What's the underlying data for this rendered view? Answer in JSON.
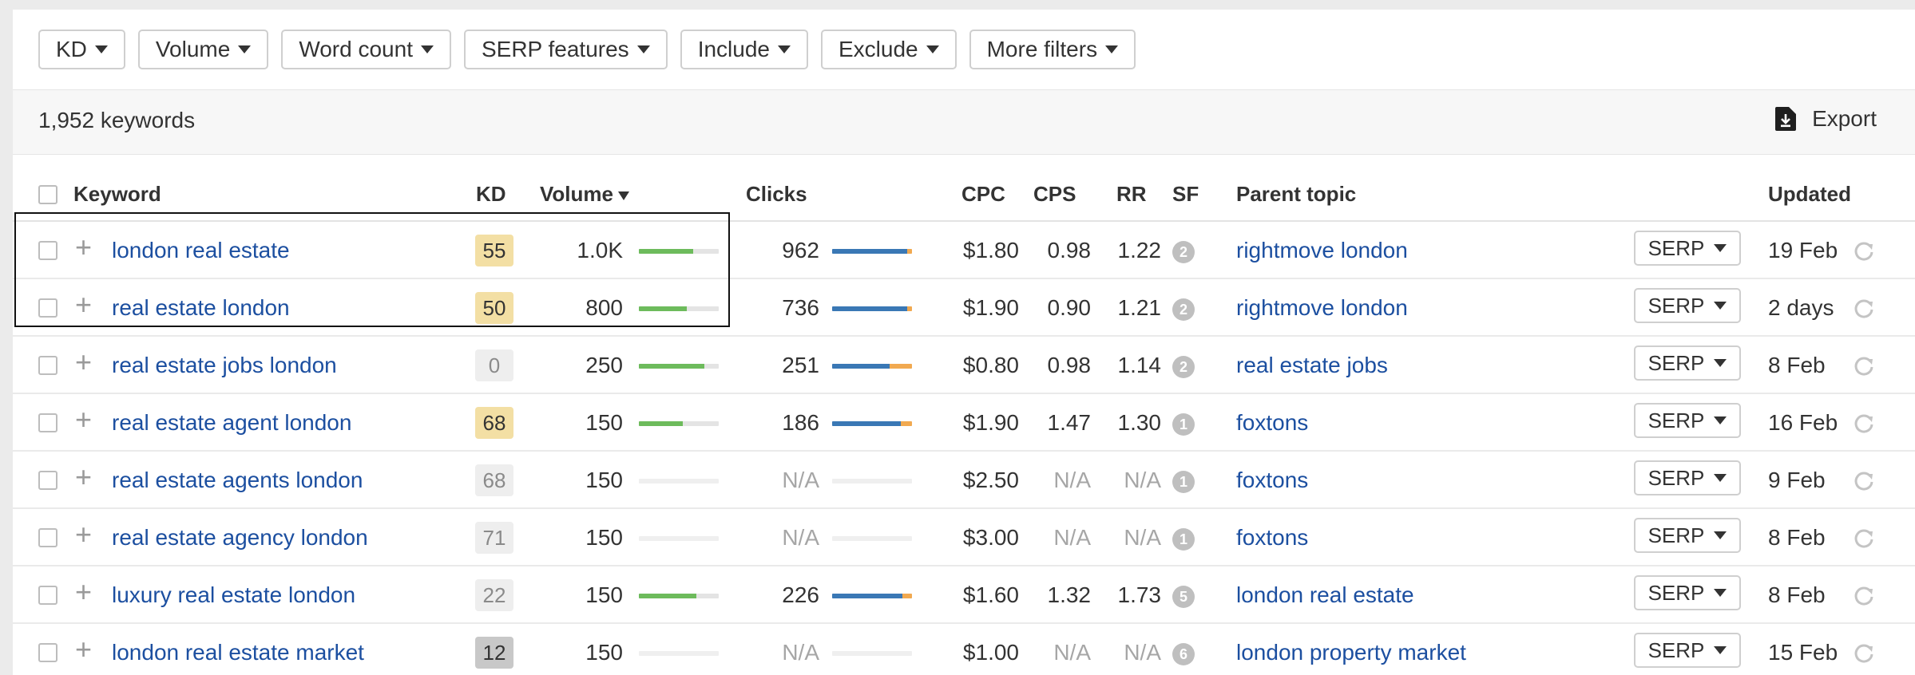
{
  "filters": [
    "KD",
    "Volume",
    "Word count",
    "SERP features",
    "Include",
    "Exclude",
    "More filters"
  ],
  "count_label": "1,952 keywords",
  "export_label": "Export",
  "headers": {
    "keyword": "Keyword",
    "kd": "KD",
    "volume": "Volume",
    "clicks": "Clicks",
    "cpc": "CPC",
    "cps": "CPS",
    "rr": "RR",
    "sf": "SF",
    "parent_topic": "Parent topic",
    "updated": "Updated"
  },
  "serp_label": "SERP",
  "colors": {
    "link": "#1c4fa0",
    "kd_high": "#f3dfa4",
    "kd_low": "#eeeeee",
    "kd_dark": "#c8c8c8",
    "volume_bar": "#6dbb5c",
    "clicks_organic": "#3a78b5",
    "clicks_paid": "#f1a950"
  },
  "rows": [
    {
      "keyword": "london real estate",
      "kd": "55",
      "kd_level": "high",
      "volume": "1.0K",
      "volume_fill": 0.68,
      "clicks": "962",
      "clicks_organic": 0.94,
      "clicks_paid": 0.06,
      "cpc": "$1.80",
      "cps": "0.98",
      "rr": "1.22",
      "sf": "2",
      "parent": "rightmove london",
      "updated": "19 Feb"
    },
    {
      "keyword": "real estate london",
      "kd": "50",
      "kd_level": "high",
      "volume": "800",
      "volume_fill": 0.6,
      "clicks": "736",
      "clicks_organic": 0.94,
      "clicks_paid": 0.06,
      "cpc": "$1.90",
      "cps": "0.90",
      "rr": "1.21",
      "sf": "2",
      "parent": "rightmove london",
      "updated": "2 days"
    },
    {
      "keyword": "real estate jobs london",
      "kd": "0",
      "kd_level": "low",
      "volume": "250",
      "volume_fill": 0.82,
      "clicks": "251",
      "clicks_organic": 0.72,
      "clicks_paid": 0.28,
      "cpc": "$0.80",
      "cps": "0.98",
      "rr": "1.14",
      "sf": "2",
      "parent": "real estate jobs",
      "updated": "8 Feb"
    },
    {
      "keyword": "real estate agent london",
      "kd": "68",
      "kd_level": "high",
      "volume": "150",
      "volume_fill": 0.55,
      "clicks": "186",
      "clicks_organic": 0.86,
      "clicks_paid": 0.14,
      "cpc": "$1.90",
      "cps": "1.47",
      "rr": "1.30",
      "sf": "1",
      "parent": "foxtons",
      "updated": "16 Feb"
    },
    {
      "keyword": "real estate agents london",
      "kd": "68",
      "kd_level": "low",
      "volume": "150",
      "volume_fill": 0,
      "clicks": "N/A",
      "clicks_organic": 0,
      "clicks_paid": 0,
      "cpc": "$2.50",
      "cps": "N/A",
      "rr": "N/A",
      "sf": "1",
      "parent": "foxtons",
      "updated": "9 Feb"
    },
    {
      "keyword": "real estate agency london",
      "kd": "71",
      "kd_level": "low",
      "volume": "150",
      "volume_fill": 0,
      "clicks": "N/A",
      "clicks_organic": 0,
      "clicks_paid": 0,
      "cpc": "$3.00",
      "cps": "N/A",
      "rr": "N/A",
      "sf": "1",
      "parent": "foxtons",
      "updated": "8 Feb"
    },
    {
      "keyword": "luxury real estate london",
      "kd": "22",
      "kd_level": "low",
      "volume": "150",
      "volume_fill": 0.72,
      "clicks": "226",
      "clicks_organic": 0.88,
      "clicks_paid": 0.12,
      "cpc": "$1.60",
      "cps": "1.32",
      "rr": "1.73",
      "sf": "5",
      "parent": "london real estate",
      "updated": "8 Feb"
    },
    {
      "keyword": "london real estate market",
      "kd": "12",
      "kd_level": "dark",
      "volume": "150",
      "volume_fill": 0,
      "clicks": "N/A",
      "clicks_organic": 0,
      "clicks_paid": 0,
      "cpc": "$1.00",
      "cps": "N/A",
      "rr": "N/A",
      "sf": "6",
      "parent": "london property market",
      "updated": "15 Feb"
    }
  ]
}
